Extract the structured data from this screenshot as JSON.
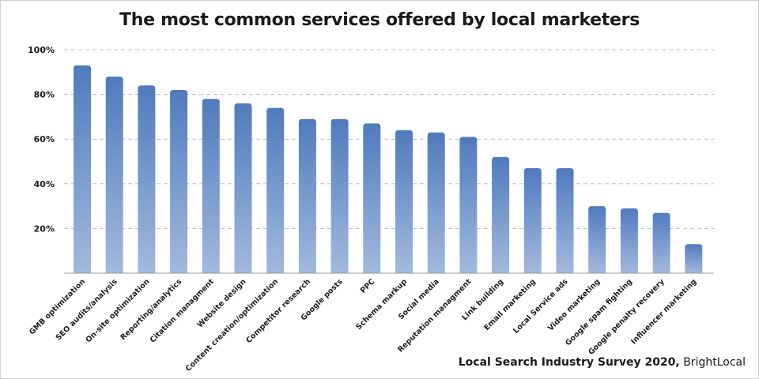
{
  "chart_data": {
    "type": "bar",
    "title": "The most common services offered by local marketers",
    "categories": [
      "GMB optimization",
      "SEO audits/analysis",
      "On-site optimization",
      "Reporting/analytics",
      "Citation managment",
      "Website design",
      "Content creation/optimization",
      "Competitor research",
      "Google posts",
      "PPC",
      "Schema markup",
      "Social media",
      "Reputation managment",
      "Link building",
      "Email marketing",
      "Local Service ads",
      "Video marketing",
      "Google spam fighting",
      "Google penalty recovery",
      "Influencer marketing"
    ],
    "values": [
      93,
      88,
      84,
      82,
      78,
      76,
      74,
      69,
      69,
      67,
      64,
      63,
      61,
      52,
      47,
      47,
      30,
      29,
      27,
      13
    ],
    "ylim": [
      0,
      100
    ],
    "yticks": [
      "20%",
      "40%",
      "60%",
      "80%",
      "100%"
    ],
    "grid": true,
    "colors": {
      "bar_top": "#4f7bbd",
      "bar_bottom": "#a3b9de",
      "grid": "#bfbfbf",
      "axis": "#999999"
    }
  },
  "source": {
    "survey": "Local Search Industry Survey 2020,",
    "publisher": "BrightLocal"
  }
}
